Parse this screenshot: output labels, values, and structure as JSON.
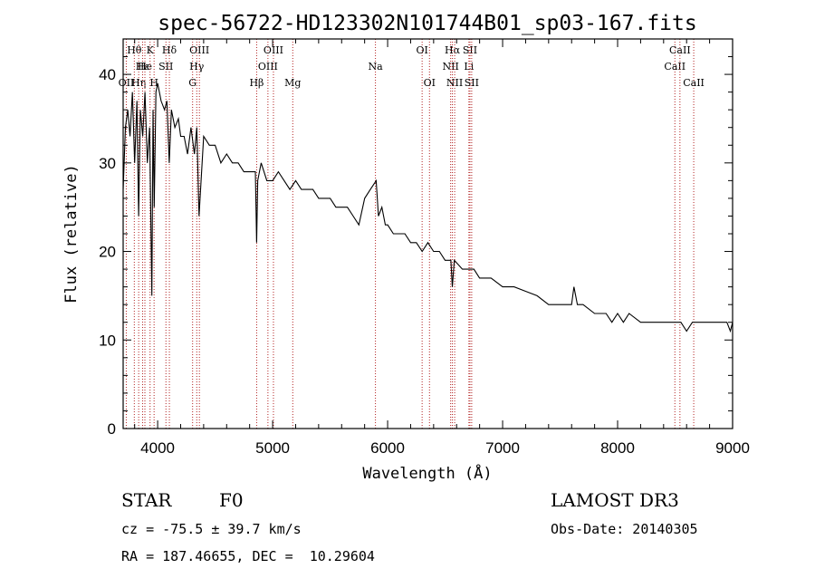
{
  "chart_data": {
    "type": "line",
    "title": "spec-56722-HD123302N101744B01_sp03-167.fits",
    "xlabel": "Wavelength (Å)",
    "ylabel": "Flux (relative)",
    "xlim": [
      3700,
      9000
    ],
    "ylim": [
      0,
      44
    ],
    "xticks": [
      4000,
      5000,
      6000,
      7000,
      8000,
      9000
    ],
    "yticks": [
      0,
      10,
      20,
      30,
      40
    ],
    "series": [
      {
        "x": [
          3700,
          3720,
          3740,
          3760,
          3780,
          3800,
          3820,
          3835,
          3850,
          3870,
          3890,
          3910,
          3930,
          3950,
          3960,
          3970,
          3985,
          4000,
          4030,
          4060,
          4080,
          4101,
          4120,
          4150,
          4180,
          4200,
          4230,
          4260,
          4290,
          4320,
          4340,
          4360,
          4400,
          4450,
          4500,
          4550,
          4600,
          4650,
          4700,
          4750,
          4800,
          4850,
          4861,
          4870,
          4900,
          4950,
          5000,
          5050,
          5100,
          5150,
          5200,
          5250,
          5300,
          5350,
          5400,
          5450,
          5500,
          5550,
          5600,
          5650,
          5700,
          5750,
          5800,
          5850,
          5900,
          5920,
          5950,
          5980,
          6000,
          6050,
          6100,
          6150,
          6200,
          6250,
          6300,
          6350,
          6400,
          6450,
          6500,
          6550,
          6563,
          6580,
          6650,
          6700,
          6750,
          6800,
          6900,
          7000,
          7100,
          7200,
          7300,
          7400,
          7500,
          7550,
          7600,
          7620,
          7650,
          7700,
          7800,
          7900,
          7950,
          8000,
          8050,
          8100,
          8200,
          8300,
          8400,
          8500,
          8550,
          8600,
          8650,
          8700,
          8800,
          8900,
          8950,
          8980,
          9000
        ],
        "y": [
          27,
          34,
          36,
          33,
          38,
          30,
          37,
          24,
          36,
          33,
          38,
          30,
          34,
          15,
          36,
          25,
          38,
          39,
          37,
          36,
          37,
          30,
          36,
          34,
          35,
          33,
          33,
          31,
          34,
          31,
          34,
          24,
          33,
          32,
          32,
          30,
          31,
          30,
          30,
          29,
          29,
          29,
          21,
          28,
          30,
          28,
          28,
          29,
          28,
          27,
          28,
          27,
          27,
          27,
          26,
          26,
          26,
          25,
          25,
          25,
          24,
          23,
          26,
          27,
          28,
          24,
          25,
          23,
          23,
          22,
          22,
          22,
          21,
          21,
          20,
          21,
          20,
          20,
          19,
          19,
          16,
          19,
          18,
          18,
          18,
          17,
          17,
          16,
          16,
          15.5,
          15,
          14,
          14,
          14,
          14,
          16,
          14,
          14,
          13,
          13,
          12,
          13,
          12,
          13,
          12,
          12,
          12,
          12,
          12,
          11,
          12,
          12,
          12,
          12,
          12,
          11,
          12
        ]
      }
    ],
    "line_markers": [
      {
        "wl": 3727,
        "label": "OII",
        "row": 2
      },
      {
        "wl": 3797,
        "label": "Hθ",
        "row": 0
      },
      {
        "wl": 3835,
        "label": "Hη",
        "row": 2
      },
      {
        "wl": 3869,
        "label": "Hε",
        "row": 1
      },
      {
        "wl": 3889,
        "label": "He",
        "row": 1
      },
      {
        "wl": 3934,
        "label": "K",
        "row": 0
      },
      {
        "wl": 3969,
        "label": "H",
        "row": 2
      },
      {
        "wl": 4072,
        "label": "SII",
        "row": 1
      },
      {
        "wl": 4102,
        "label": "Hδ",
        "row": 0
      },
      {
        "wl": 4304,
        "label": "G",
        "row": 2
      },
      {
        "wl": 4340,
        "label": "Hγ",
        "row": 1
      },
      {
        "wl": 4363,
        "label": "OIII",
        "row": 0
      },
      {
        "wl": 4861,
        "label": "Hβ",
        "row": 2
      },
      {
        "wl": 4959,
        "label": "OIII",
        "row": 1
      },
      {
        "wl": 5007,
        "label": "OIII",
        "row": 0
      },
      {
        "wl": 5175,
        "label": "Mg",
        "row": 2
      },
      {
        "wl": 5894,
        "label": "Na",
        "row": 1
      },
      {
        "wl": 6300,
        "label": "OI",
        "row": 0
      },
      {
        "wl": 6364,
        "label": "OI",
        "row": 2
      },
      {
        "wl": 6548,
        "label": "NII",
        "row": 1
      },
      {
        "wl": 6563,
        "label": "Hα",
        "row": 0
      },
      {
        "wl": 6583,
        "label": "NII",
        "row": 2
      },
      {
        "wl": 6707,
        "label": "Li",
        "row": 1
      },
      {
        "wl": 6716,
        "label": "SII",
        "row": 0
      },
      {
        "wl": 6731,
        "label": "SII",
        "row": 2
      },
      {
        "wl": 8498,
        "label": "CaII",
        "row": 1
      },
      {
        "wl": 8542,
        "label": "CaII",
        "row": 0
      },
      {
        "wl": 8662,
        "label": "CaII",
        "row": 2
      }
    ]
  },
  "info": {
    "class_label": "STAR",
    "subclass": "F0",
    "survey": "LAMOST DR3",
    "cz": "cz = -75.5 ± 39.7 km/s",
    "obs_date": "Obs-Date: 20140305",
    "coords": "RA = 187.46655, DEC =  10.29604"
  }
}
